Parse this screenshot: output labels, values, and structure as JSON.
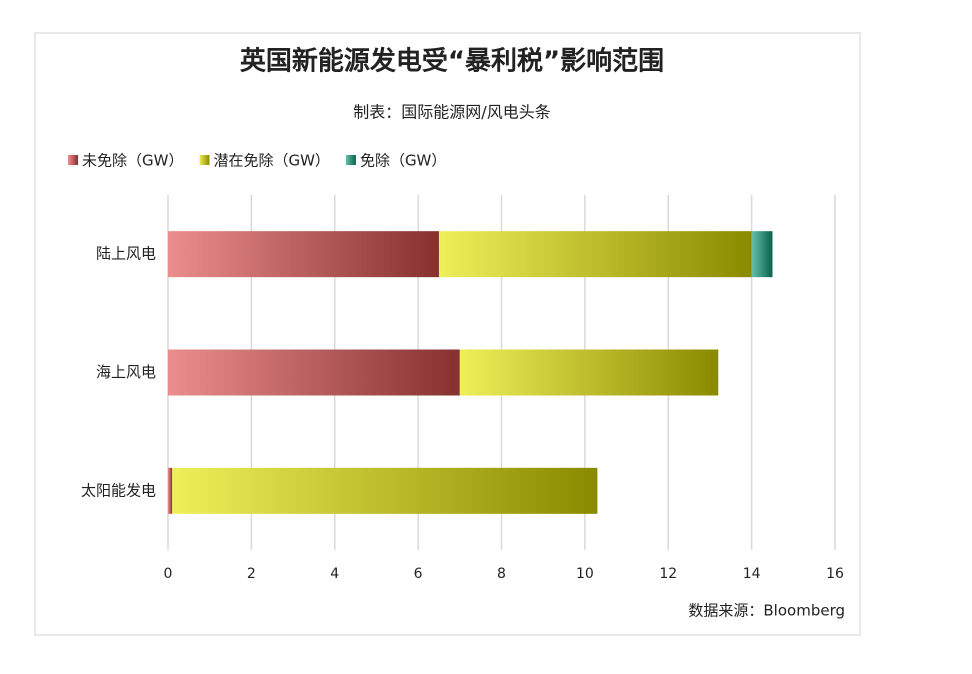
{
  "chart_data": {
    "type": "stacked-barh",
    "title": "英国新能源发电受“暴利税”影响范围",
    "subtitle": "制表：国际能源网/风电头条",
    "source": "数据来源：Bloomberg",
    "categories": [
      "陆上风电",
      "海上风电",
      "太阳能发电"
    ],
    "series": [
      {
        "name": "未免除（GW）",
        "color": "#e05050",
        "values": [
          6.5,
          7.0,
          0.1
        ]
      },
      {
        "name": "潜在免除（GW）",
        "color": "#e6e600",
        "values": [
          7.5,
          6.2,
          10.2
        ]
      },
      {
        "name": "免除（GW）",
        "color": "#10a080",
        "values": [
          0.5,
          0,
          0
        ]
      }
    ],
    "xlim": [
      0,
      16
    ],
    "xticks": [
      0,
      2,
      4,
      6,
      8,
      10,
      12,
      14,
      16
    ],
    "grid": true
  }
}
